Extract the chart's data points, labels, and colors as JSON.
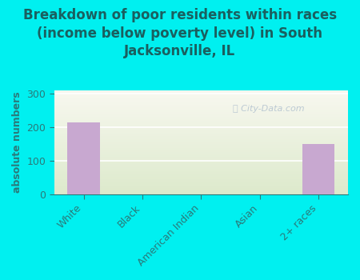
{
  "title": "Breakdown of poor residents within races\n(income below poverty level) in South\nJacksonville, IL",
  "categories": [
    "White",
    "Black",
    "American Indian",
    "Asian",
    "2+ races"
  ],
  "values": [
    215,
    0,
    0,
    0,
    150
  ],
  "bar_color": "#c8a8d0",
  "ylabel": "absolute numbers",
  "ylim": [
    0,
    310
  ],
  "yticks": [
    0,
    100,
    200,
    300
  ],
  "background_color": "#00f0f0",
  "plot_bg_top": "#f0f4e4",
  "plot_bg_bottom": "#ddeacc",
  "watermark": "City-Data.com",
  "title_fontsize": 12,
  "title_color": "#1a5f5f",
  "ylabel_fontsize": 9,
  "tick_fontsize": 9,
  "tick_color": "#2a7a7a"
}
